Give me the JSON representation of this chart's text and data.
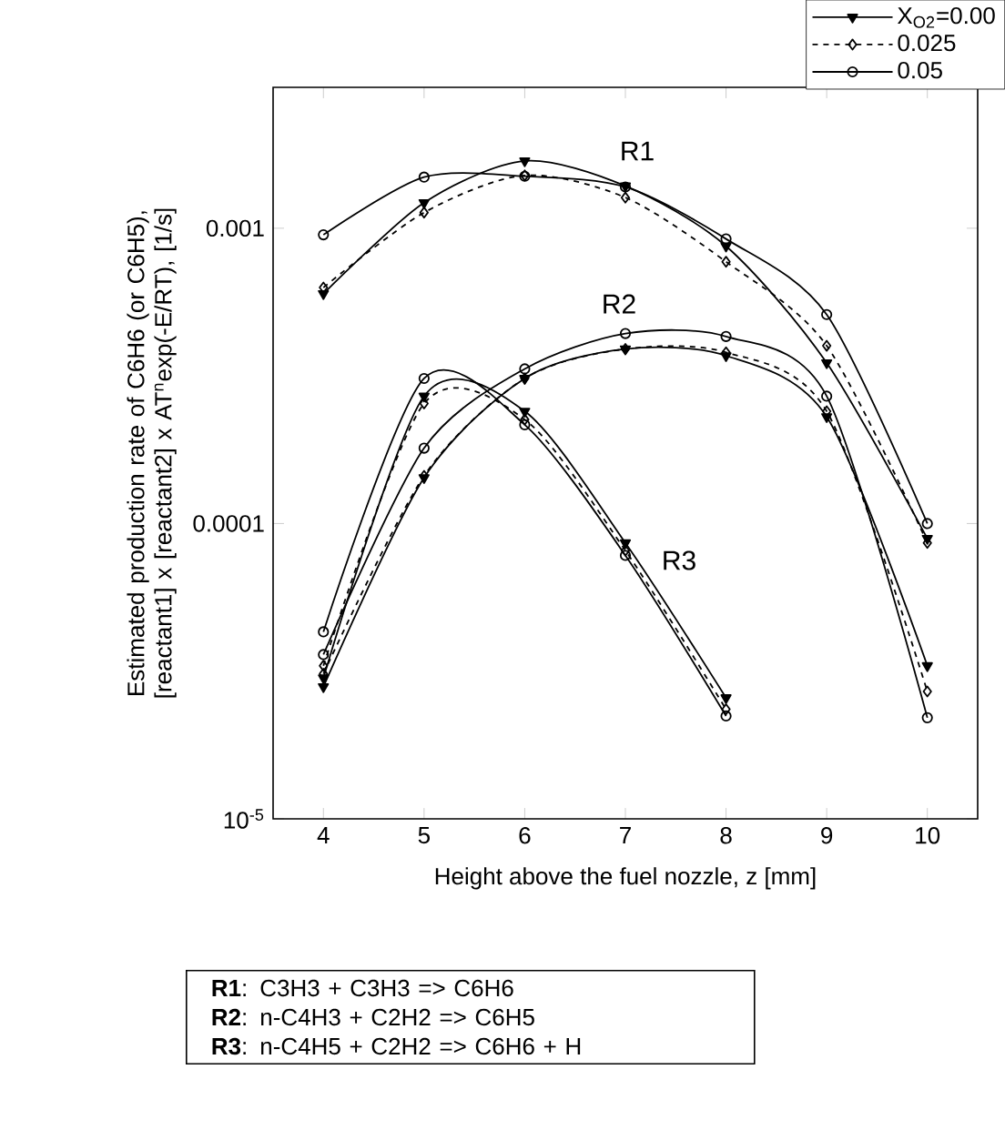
{
  "chart_data": {
    "type": "line",
    "log": "y",
    "xlabel": "Height above the fuel nozzle, z [mm]",
    "ylabel": "Estimated production rate of C6H6 (or C6H5), [reactant1] x [reactant2] x AT$^{n}$exp(-E/RT), [1/s]",
    "x": [
      4,
      5,
      6,
      7,
      8,
      9,
      10
    ],
    "xlim": [
      3.5,
      10.5
    ],
    "ylim": [
      1e-05,
      0.003
    ],
    "xticks": [
      4,
      5,
      6,
      7,
      8,
      9,
      10
    ],
    "yticks": [
      {
        "value": 1e-05,
        "label": "10$^{-5}$"
      },
      {
        "value": 0.0001,
        "label": "0.0001"
      },
      {
        "value": 0.001,
        "label": "0.001"
      }
    ],
    "legend": "top right",
    "grid": false,
    "series": [
      {
        "name": "X$_{O2}$=0.00",
        "color": "#000000",
        "marker": "triangle",
        "line_style": "solid",
        "values": [
          0.0006,
          0.00122,
          0.00169,
          0.00139,
          0.00087,
          0.00035,
          8.9e-05
        ]
      },
      {
        "name": "0.025",
        "color": "#000000",
        "marker": "diamond",
        "line_style": "dashed",
        "values": [
          0.00063,
          0.00113,
          0.00151,
          0.00127,
          0.00077,
          0.0004,
          8.6e-05
        ]
      },
      {
        "name": "0.05",
        "color": "#000000",
        "marker": "circle",
        "line_style": "solid",
        "values": [
          0.00095,
          0.00149,
          0.0015,
          0.00138,
          0.00092,
          0.00051,
          0.0001
        ]
      },
      {
        "color": "#000000",
        "marker": "triangle",
        "line_style": "solid",
        "values": [
          2.8e-05,
          0.000143,
          0.00031,
          0.00039,
          0.00037,
          0.00023,
          3.3e-05
        ]
      },
      {
        "color": "#000000",
        "marker": "diamond",
        "line_style": "dashed",
        "values": [
          3.1e-05,
          0.000145,
          0.00031,
          0.00039,
          0.00038,
          0.00024,
          2.7e-05
        ]
      },
      {
        "color": "#000000",
        "marker": "circle",
        "line_style": "solid",
        "values": [
          3.6e-05,
          0.00018,
          0.000334,
          0.00044,
          0.00043,
          0.00027,
          2.2e-05
        ]
      },
      {
        "color": "#000000",
        "marker": "triangle",
        "line_style": "solid",
        "x": [
          4,
          5,
          6,
          7,
          8
        ],
        "values": [
          3e-05,
          0.00027,
          0.00024,
          8.6e-05,
          2.57e-05
        ]
      },
      {
        "color": "#000000",
        "marker": "diamond",
        "line_style": "dashed",
        "x": [
          4,
          5,
          6,
          7,
          8
        ],
        "values": [
          3.3e-05,
          0.000255,
          0.000225,
          8.1e-05,
          2.35e-05
        ]
      },
      {
        "color": "#000000",
        "marker": "circle",
        "line_style": "solid",
        "x": [
          4,
          5,
          6,
          7,
          8
        ],
        "values": [
          4.3e-05,
          0.00031,
          0.000216,
          7.8e-05,
          2.23e-05
        ]
      }
    ],
    "annotations": [
      "R1",
      "R2",
      "R3",
      "**R1**:   C3H3 + C3H3 => C6H6",
      "**R2**:  n-C4H3 + C2H2 => C6H5",
      "**R3**:  n-C4H5 + C2H2 => C6H6 + H"
    ]
  }
}
